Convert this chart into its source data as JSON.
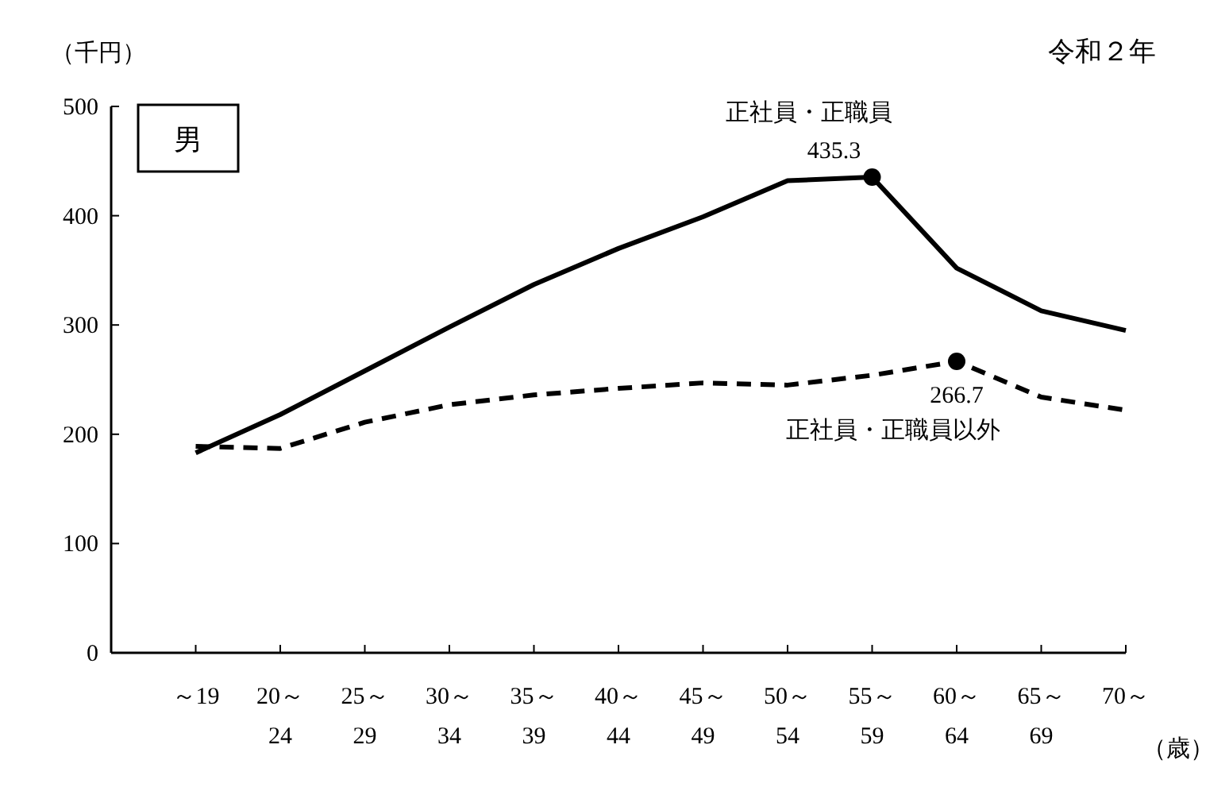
{
  "chart_data": {
    "type": "line",
    "title": "令和２年",
    "subtitle": "男",
    "ylabel": "（千円）",
    "xlabel": "（歳）",
    "categories": [
      "～19",
      "20～\n24",
      "25～\n29",
      "30～\n34",
      "35～\n39",
      "40～\n44",
      "45～\n49",
      "50～\n54",
      "55～\n59",
      "60～\n64",
      "65～\n69",
      "70～"
    ],
    "ylim": [
      0,
      500
    ],
    "yticks": [
      0,
      100,
      200,
      300,
      400,
      500
    ],
    "grid": false,
    "marker": "none",
    "series": [
      {
        "name": "正社員・正職員",
        "color": "#000000",
        "line_style": "solid",
        "values": [
          183,
          218,
          258,
          298,
          337,
          370,
          399,
          432,
          435.3,
          352,
          313,
          295
        ],
        "value_labels": [
          null,
          null,
          null,
          null,
          null,
          null,
          null,
          null,
          "435.3",
          null,
          null,
          null
        ]
      },
      {
        "name": "正社員・正職員以外",
        "color": "#000000",
        "line_style": "dashed",
        "values": [
          189,
          187,
          211,
          227,
          236,
          242,
          247,
          245,
          254,
          266.7,
          234,
          222
        ],
        "value_labels": [
          null,
          null,
          null,
          null,
          null,
          null,
          null,
          null,
          null,
          "266.7",
          null,
          null
        ]
      }
    ]
  }
}
